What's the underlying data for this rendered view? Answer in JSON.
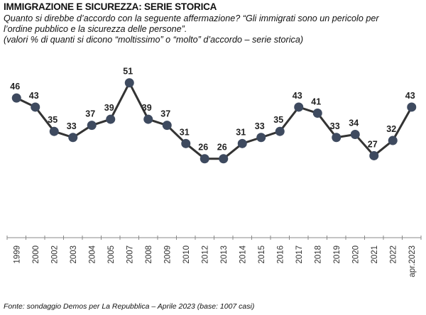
{
  "chart_data": {
    "type": "line",
    "title": "IMMIGRAZIONE E SICUREZZA: SERIE STORICA",
    "subtitle_lines": [
      "Quanto si direbbe d’accordo con la seguente affermazione? “Gli immigrati sono un pericolo per",
      "l’ordine pubblico e la sicurezza delle persone”.",
      "(valori % di quanti si dicono “moltissimo” o “molto” d’accordo – serie storica)"
    ],
    "categories": [
      "1999",
      "2000",
      "2002",
      "2003",
      "2004",
      "2005",
      "2007",
      "2008",
      "2009",
      "2010",
      "2012",
      "2013",
      "2014",
      "2015",
      "2016",
      "2017",
      "2018",
      "2019",
      "2020",
      "2021",
      "2022",
      "apr.2023"
    ],
    "values": [
      46,
      43,
      35,
      33,
      37,
      39,
      51,
      39,
      37,
      31,
      26,
      26,
      31,
      33,
      35,
      43,
      41,
      33,
      34,
      27,
      32,
      43
    ],
    "ylim": [
      0,
      55
    ],
    "grid": false,
    "xlabel": "",
    "ylabel": "",
    "line_color": "#333333",
    "marker_color": "#3e4a5f",
    "source": "Fonte: sondaggio Demos per La Repubblica – Aprile 2023 (base: 1007 casi)"
  }
}
